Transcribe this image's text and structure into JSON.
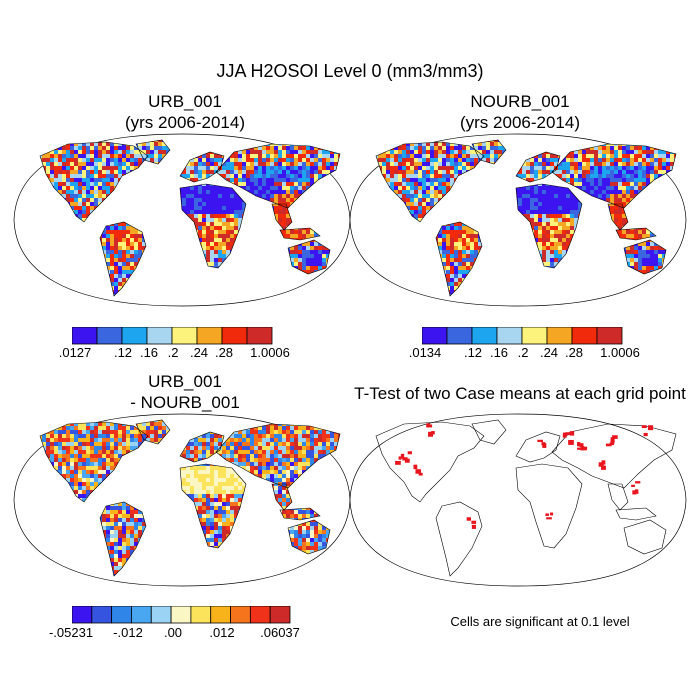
{
  "figure": {
    "title": "JJA H2OSOI Level 0 (mm3/mm3)"
  },
  "panels": [
    {
      "id": "urb",
      "title_line1": "URB_001",
      "title_line2": "(yrs 2006-2014)",
      "colorbar": {
        "colors": [
          "#3c14f0",
          "#3a66e0",
          "#1da5f0",
          "#a8d5f0",
          "#fbf37c",
          "#f5a724",
          "#f02a0a",
          "#cf2a2a"
        ],
        "labels": [
          ".0127",
          ".12",
          ".16",
          ".2",
          ".24",
          ".28",
          "1.0006"
        ]
      }
    },
    {
      "id": "nourb",
      "title_line1": "NOURB_001",
      "title_line2": "(yrs 2006-2014)",
      "colorbar": {
        "colors": [
          "#3c14f0",
          "#3a66e0",
          "#1da5f0",
          "#a8d5f0",
          "#fbf37c",
          "#f5a724",
          "#f02a0a",
          "#cf2a2a"
        ],
        "labels": [
          ".0134",
          ".12",
          ".16",
          ".2",
          ".24",
          ".28",
          "1.0006"
        ]
      }
    },
    {
      "id": "diff",
      "title_line1": "URB_001",
      "title_line2": "- NOURB_001",
      "colorbar": {
        "colors": [
          "#3c14f0",
          "#3555e0",
          "#2f85e8",
          "#48a7f0",
          "#9bd3f5",
          "#fbf7c4",
          "#fce35c",
          "#f9b31a",
          "#f6741c",
          "#f0321a",
          "#cf2a2a"
        ],
        "labels": [
          "-.05231",
          "-.012",
          ".00",
          ".012",
          ".06037"
        ]
      }
    },
    {
      "id": "ttest",
      "title_line1": "T-Test of two Case means at each grid point",
      "note": "Cells are significant at 0.1 level"
    }
  ],
  "chart_data": {
    "type": "heatmap",
    "title": "JJA H2OSOI Level 0 (mm3/mm3)",
    "projection": "Robinson global map",
    "panels": [
      {
        "name": "URB_001 (yrs 2006-2014)",
        "scale_min": 0.0127,
        "scale_max": 1.0006,
        "ticks": [
          0.0127,
          0.12,
          0.16,
          0.2,
          0.24,
          0.28,
          1.0006
        ]
      },
      {
        "name": "NOURB_001 (yrs 2006-2014)",
        "scale_min": 0.0134,
        "scale_max": 1.0006,
        "ticks": [
          0.0134,
          0.12,
          0.16,
          0.2,
          0.24,
          0.28,
          1.0006
        ]
      },
      {
        "name": "URB_001 - NOURB_001",
        "scale_min": -0.05231,
        "scale_max": 0.06037,
        "ticks": [
          -0.05231,
          -0.012,
          0.0,
          0.012,
          0.06037
        ]
      },
      {
        "name": "T-Test of two Case means at each grid point",
        "note": "Cells are significant at 0.1 level",
        "significant_color": "#e8141e"
      }
    ]
  }
}
